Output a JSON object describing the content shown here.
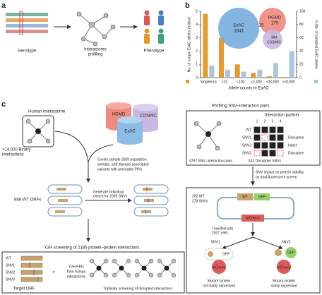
{
  "panel_a": {
    "label": "a",
    "genotype": "Genotype",
    "interactome": [
      "Interactome",
      "profiling"
    ],
    "phenotype": "Phenotype"
  },
  "panel_b": {
    "label": "b",
    "venn": [
      {
        "name": "ExAC",
        "count": 1643
      },
      {
        "name": "HGMD",
        "count": 179
      },
      {
        "name": "COSMIC",
        "count": 384
      }
    ],
    "overlap": 25
  },
  "chart_data": {
    "type": "bar",
    "categories": [
      "Singletons",
      "<10",
      "<100",
      "<1,000",
      "<10,000",
      ">10,000"
    ],
    "series": [
      {
        "name": "No. of unique ExAC alleles (million)",
        "color": "#e89a2c",
        "values": [
          4.8,
          3.0,
          1.0,
          0.35,
          0.1,
          0.05
        ]
      },
      {
        "name": "% No. of sampled ExAC alleles",
        "color": "#a9c6de",
        "axis": "y2",
        "values": [
          18,
          12,
          9,
          12,
          22,
          40
        ]
      }
    ],
    "ylim": [
      0,
      5
    ],
    "yticks": [
      0,
      1,
      2,
      3,
      4,
      5
    ],
    "y2lim": [
      0,
      100
    ],
    "y2ticks": [
      0,
      20,
      40,
      60,
      80,
      100
    ],
    "xlabel": "Allele counts in ExAC"
  },
  "panel_c": {
    "label": "c",
    "human_interactome": "Human interactome",
    "binary": [
      ">14,000 Binary",
      "interactions"
    ],
    "databases": [
      "HGMD",
      "COSMIC",
      "ExAC"
    ],
    "sampling": [
      "Evenly sample 2009 population,",
      "somatic, and disease-associated",
      "variants with amenable PPIs"
    ],
    "wt_orfs": "888 WT ORFs",
    "clones": [
      "Generate individual",
      "clones for 2009 SNVs"
    ],
    "y2h_title": "Y2H screening of 2185 protein–protein interactions",
    "y2h": {
      "rows": [
        "WT",
        "SNV1",
        "SNV2",
        "SNV3"
      ],
      "target": "Target ORF",
      "times": "×",
      "ppis": [
        "Y2H PPIs",
        "from human",
        "interactome"
      ],
      "triplicate": "Triplicate screening of disrupted interactions"
    },
    "profiling": {
      "title": "Profiling SNV–interaction pairs",
      "partner": "Interaction partner",
      "columns": [
        "1",
        "2",
        "3",
        "4"
      ],
      "rows": [
        "WT",
        "SNV1",
        "SNV2",
        "SNV3"
      ],
      "outcomes": [
        "Disruptive",
        "Intact",
        "Disruptive"
      ],
      "pairs": "4797 SNV–interaction pairs",
      "disruptive": "442 Disruptive SNVs"
    },
    "stability": {
      "title": [
        "SNV impact on protein stability",
        "by dual-fluorescent screen"
      ],
      "wt": "202 WT",
      "snvs": "278 SNVs",
      "construct": [
        "WT",
        "GFP",
        "mCherry"
      ],
      "transfect": [
        "Transfect into",
        "293T cells"
      ],
      "snv1": "SNV1",
      "snv2": "SNV2",
      "gfp": "GFP",
      "mcherry": "mCherry",
      "notes": [
        [
          "Mutant protein",
          "not stably expressed"
        ],
        [
          "Mutant protein",
          "stably expressed"
        ]
      ]
    }
  }
}
